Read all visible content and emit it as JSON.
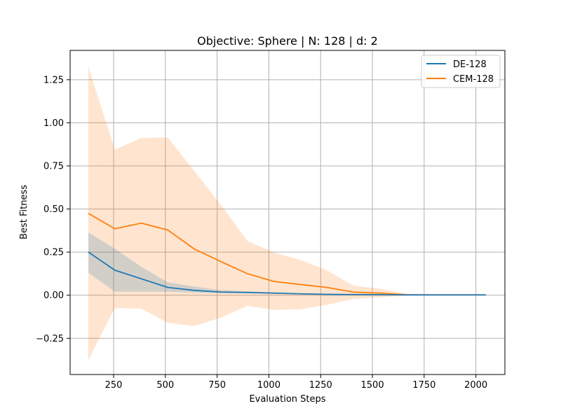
{
  "chart_data": {
    "type": "line",
    "title": "Objective: Sphere | N: 128 | d: 2",
    "xlabel": "Evaluation Steps",
    "ylabel": "Best Fitness",
    "xlim": [
      40,
      2140
    ],
    "ylim": [
      -0.46,
      1.42
    ],
    "xticks": [
      250,
      500,
      750,
      1000,
      1250,
      1500,
      1750,
      2000
    ],
    "xtick_labels": [
      "250",
      "500",
      "750",
      "1000",
      "1250",
      "1500",
      "1750",
      "2000"
    ],
    "yticks": [
      -0.25,
      0.0,
      0.25,
      0.5,
      0.75,
      1.0,
      1.25
    ],
    "ytick_labels": [
      "−0.25",
      "0.00",
      "0.25",
      "0.50",
      "0.75",
      "1.00",
      "1.25"
    ],
    "grid": true,
    "legend_position": "top-right",
    "x": [
      128,
      256,
      384,
      512,
      640,
      768,
      896,
      1024,
      1152,
      1280,
      1408,
      1536,
      1664,
      1792,
      1920,
      2048
    ],
    "series": [
      {
        "name": "DE-128",
        "color": "#1f77b4",
        "values": [
          0.25,
          0.145,
          0.095,
          0.045,
          0.028,
          0.018,
          0.016,
          0.012,
          0.008,
          0.005,
          0.004,
          0.003,
          0.002,
          0.002,
          0.002,
          0.002
        ],
        "lower": [
          0.13,
          0.02,
          0.02,
          0.02,
          0.015,
          0.012,
          0.01,
          0.008,
          0.005,
          0.003,
          0.002,
          0.002,
          0.001,
          0.001,
          0.001,
          0.001
        ],
        "upper": [
          0.365,
          0.27,
          0.165,
          0.075,
          0.05,
          0.03,
          0.022,
          0.016,
          0.011,
          0.008,
          0.006,
          0.004,
          0.003,
          0.003,
          0.003,
          0.003
        ]
      },
      {
        "name": "CEM-128",
        "color": "#ff7f0e",
        "values": [
          0.475,
          0.385,
          0.418,
          0.378,
          0.268,
          0.195,
          0.125,
          0.08,
          0.062,
          0.045,
          0.018,
          0.012,
          0.003,
          0.002,
          0.002,
          0.002
        ],
        "lower": [
          -0.375,
          -0.075,
          -0.078,
          -0.16,
          -0.18,
          -0.13,
          -0.062,
          -0.085,
          -0.082,
          -0.055,
          -0.022,
          -0.012,
          -0.002,
          -0.001,
          -0.001,
          -0.001
        ],
        "upper": [
          1.325,
          0.845,
          0.912,
          0.915,
          0.72,
          0.525,
          0.315,
          0.248,
          0.205,
          0.145,
          0.055,
          0.038,
          0.008,
          0.004,
          0.003,
          0.003
        ]
      }
    ]
  }
}
